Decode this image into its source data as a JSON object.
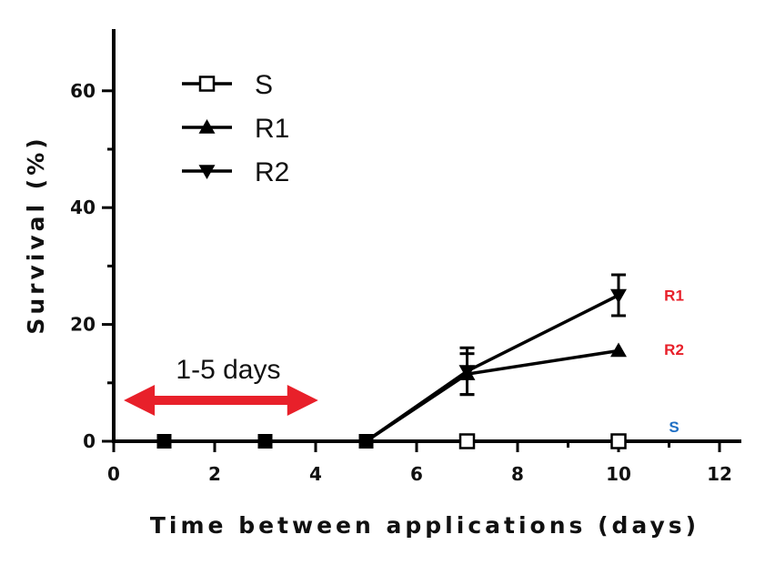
{
  "chart_data": {
    "type": "line",
    "title": "",
    "xlabel": "Time between applications (days)",
    "ylabel": "Survival (%)",
    "xlim": [
      0,
      12.5
    ],
    "ylim": [
      0,
      70
    ],
    "xticks": [
      0,
      2,
      4,
      6,
      8,
      10,
      12
    ],
    "xtick_labels": [
      "0",
      "2",
      "4",
      "6",
      "8",
      "10",
      "12"
    ],
    "yticks": [
      0,
      20,
      40,
      60
    ],
    "ytick_labels": [
      "0",
      "20",
      "40",
      "60"
    ],
    "grid": false,
    "legend_position": "top-left",
    "series": [
      {
        "name": "S",
        "marker": "open-square",
        "color": "#000000",
        "x": [
          1,
          3,
          5,
          7,
          10
        ],
        "y": [
          0,
          0,
          0,
          0,
          0
        ],
        "err": [
          0,
          0,
          0,
          0,
          0
        ]
      },
      {
        "name": "R1",
        "marker": "triangle-up",
        "color": "#000000",
        "x": [
          1,
          3,
          5,
          7,
          10
        ],
        "y": [
          0,
          0,
          0,
          11.5,
          15.5
        ],
        "err": [
          0,
          0,
          0,
          3.5,
          0
        ]
      },
      {
        "name": "R2",
        "marker": "triangle-down",
        "color": "#000000",
        "x": [
          1,
          3,
          5,
          7,
          10
        ],
        "y": [
          0,
          0,
          0,
          12,
          25
        ],
        "err": [
          0,
          0,
          0,
          4,
          3.5
        ]
      }
    ],
    "annotations": [
      {
        "text": "R1",
        "x": 11.1,
        "y": 25,
        "color": "#e8202a"
      },
      {
        "text": "R2",
        "x": 11.1,
        "y": 15.7,
        "color": "#e8202a"
      },
      {
        "text": "S",
        "x": 11.1,
        "y": 2.5,
        "color": "#1f6fc4"
      }
    ],
    "range_arrow": {
      "label": "1-5 days",
      "from": 0.2,
      "to": 4.05,
      "y": 7,
      "color": "#e8202a"
    }
  }
}
